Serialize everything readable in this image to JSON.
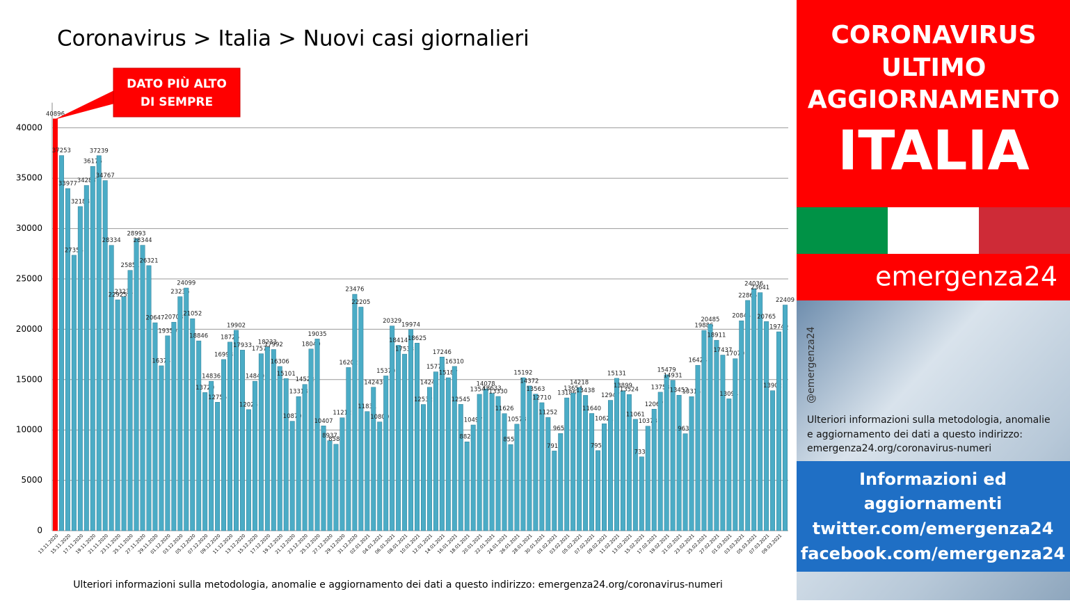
{
  "chart_data": {
    "type": "bar",
    "title": "Coronavirus > Italia > Nuovi casi giornalieri",
    "annotation": "DATO PIÙ ALTO DI SEMPRE",
    "footnote": "Ulteriori informazioni sulla metodologia, anomalie e aggiornamento dei dati a questo indirizzo: emergenza24.org/coronavirus-numeri",
    "color": "#4bacc6",
    "highlight_color": "#ff0000",
    "highlight_index": 0,
    "grid": true,
    "ylim": [
      0,
      42500
    ],
    "yticks": [
      0,
      5000,
      10000,
      15000,
      20000,
      25000,
      30000,
      35000,
      40000
    ],
    "categories": [
      "13.11.2020",
      null,
      "15.11.2020",
      null,
      "17.11.2020",
      null,
      "19.11.2020",
      null,
      "21.11.2020",
      null,
      "23.11.2020",
      null,
      "25.11.2020",
      null,
      "27.11.2020",
      null,
      "29.11.2020",
      null,
      "01.12.2020",
      null,
      "03.12.2020",
      null,
      "05.12.2020",
      null,
      "07.12.2020",
      null,
      "09.12.2020",
      null,
      "11.12.2020",
      null,
      "13.12.2020",
      null,
      "15.12.2020",
      null,
      "17.12.2020",
      null,
      "19.12.2020",
      null,
      "21.12.2020",
      null,
      "23.12.2020",
      null,
      "25.12.2020",
      null,
      "27.12.2020",
      null,
      "29.12.2020",
      null,
      "31.12.2020",
      null,
      "02.01.2021",
      null,
      "04.01.2021",
      null,
      "06.01.2021",
      null,
      "08.01.2021",
      null,
      "10.01.2021",
      null,
      "12.01.2021",
      null,
      "14.01.2021",
      null,
      "16.01.2021",
      null,
      "18.01.2021",
      null,
      "20.01.2021",
      null,
      "22.01.2021",
      null,
      "24.01.2021",
      null,
      "26.01.2021",
      null,
      "28.01.2021",
      null,
      "30.01.2021",
      null,
      "01.02.2021",
      null,
      "03.02.2021",
      null,
      "05.02.2021",
      null,
      "07.02.2021",
      null,
      "09.02.2021",
      null,
      "11.02.2021",
      null,
      "13.02.2021",
      null,
      "15.02.2021",
      null,
      "17.02.2021",
      null,
      "19.02.2021",
      null,
      "21.02.2021",
      null,
      "23.02.2021",
      null,
      "25.02.2021",
      null,
      "27.02.2021",
      null,
      "01.03.2021",
      null,
      "03.03.2021",
      null,
      "05.03.2021",
      null,
      "07.03.2021",
      null,
      "09.03.2021",
      null
    ],
    "values": [
      40896,
      37253,
      33977,
      27354,
      32188,
      34283,
      36176,
      37239,
      34767,
      28334,
      22925,
      23231,
      25851,
      28993,
      28344,
      26321,
      20647,
      16374,
      19350,
      20703,
      23236,
      24099,
      21052,
      18846,
      13720,
      14836,
      12755,
      16998,
      18726,
      19902,
      17933,
      12025,
      14840,
      17572,
      18233,
      17992,
      16306,
      15101,
      10870,
      13318,
      14522,
      18040,
      19035,
      10407,
      8937,
      8583,
      11212,
      16202,
      23476,
      22205,
      11831,
      14243,
      10800,
      15370,
      20329,
      18414,
      17533,
      19974,
      18625,
      12532,
      14241,
      15771,
      17246,
      15187,
      16310,
      12545,
      8824,
      10497,
      13543,
      14078,
      13633,
      13330,
      11626,
      8555,
      10578,
      15192,
      14372,
      13563,
      12710,
      11252,
      7916,
      9653,
      13186,
      13654,
      14218,
      13438,
      11640,
      7952,
      10621,
      12947,
      15131,
      13899,
      13524,
      11061,
      7333,
      10378,
      12067,
      13753,
      15479,
      14931,
      13452,
      9630,
      13314,
      16424,
      19886,
      20485,
      18911,
      17437,
      13094,
      17079,
      20844,
      22865,
      24036,
      23641,
      20765,
      13902,
      19749,
      22409
    ]
  },
  "sidebar": {
    "heading": [
      "CORONAVIRUS",
      "ULTIMO",
      "AGGIORNAMENTO"
    ],
    "country": "ITALIA",
    "brand": "emergenza24",
    "handle": "@emergenza24",
    "info": [
      "Ulteriori informazioni sulla metodologia, anomalie",
      "e aggiornamento dei dati a questo indirizzo:",
      "emergenza24.org/coronavirus-numeri"
    ],
    "links": [
      "Informazioni ed",
      "aggiornamenti",
      "twitter.com/emergenza24",
      "facebook.com/emergenza24"
    ]
  }
}
